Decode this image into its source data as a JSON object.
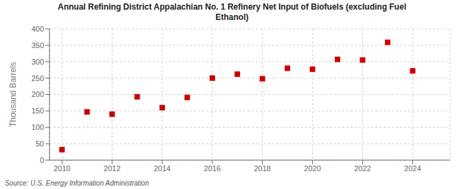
{
  "chart_data": {
    "type": "scatter",
    "title": "Annual Refining District Appalachian No. 1 Refinery Net Input of Biofuels (excluding Fuel\nEthanol)",
    "y_label": "Thousand Barrels",
    "annotation": "Source: U.S. Energy Information Administration",
    "x": [
      2010,
      2011,
      2012,
      2013,
      2014,
      2015,
      2016,
      2017,
      2018,
      2019,
      2020,
      2021,
      2022,
      2023,
      2024
    ],
    "values": [
      32,
      147,
      140,
      193,
      160,
      191,
      250,
      262,
      248,
      280,
      277,
      307,
      305,
      359,
      272
    ],
    "color": "#cc0000",
    "marker": "square",
    "xlim": [
      2009.5,
      2025.5
    ],
    "xticks": [
      2010,
      2012,
      2014,
      2016,
      2018,
      2020,
      2022,
      2024
    ],
    "ylim": [
      0,
      400
    ],
    "yticks": [
      0,
      50,
      100,
      150,
      200,
      250,
      300,
      350,
      400
    ],
    "grid": true
  }
}
